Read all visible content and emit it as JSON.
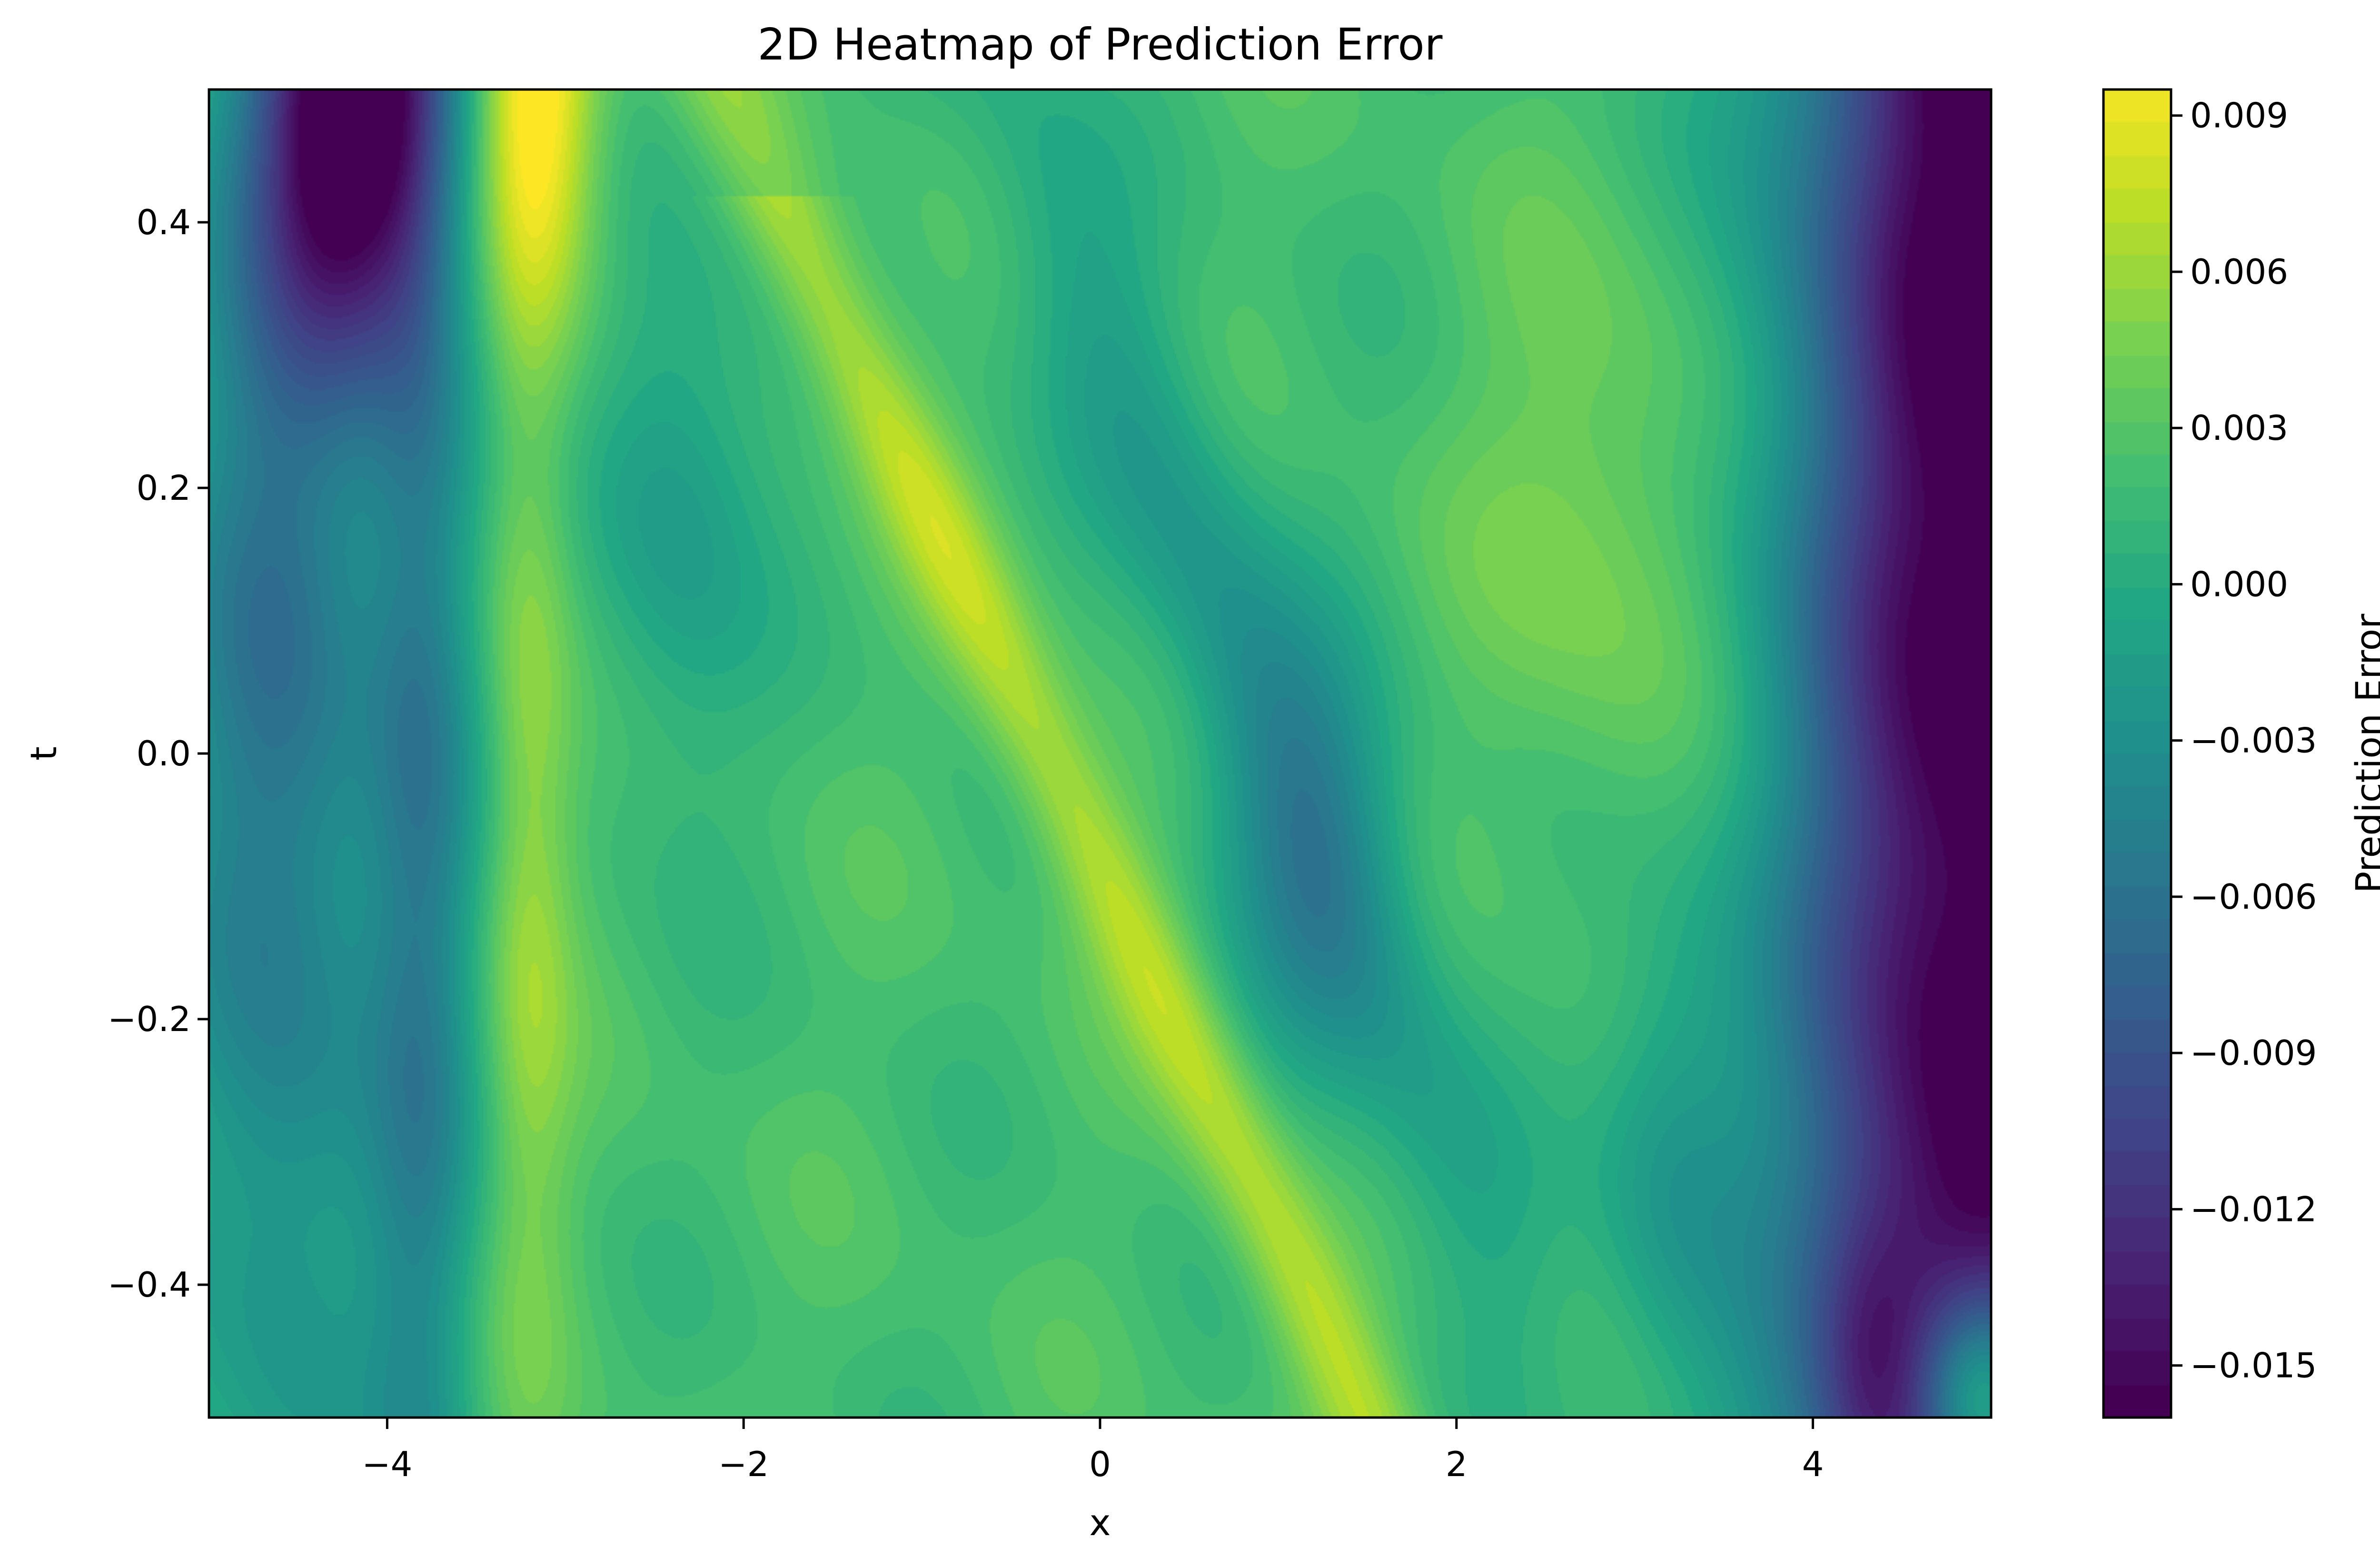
{
  "chart_data": {
    "type": "heatmap",
    "title": "2D Heatmap of Prediction Error",
    "xlabel": "x",
    "ylabel": "t",
    "xlim": [
      -5,
      5
    ],
    "ylim": [
      -0.5,
      0.5
    ],
    "colorbar": {
      "label": "Prediction Error",
      "range": [
        -0.016,
        0.0095
      ],
      "colormap": "viridis",
      "ticks": [
        {
          "value": 0.009,
          "label": "0.009"
        },
        {
          "value": 0.006,
          "label": "0.006"
        },
        {
          "value": 0.003,
          "label": "0.003"
        },
        {
          "value": 0.0,
          "label": "0.000"
        },
        {
          "value": -0.003,
          "label": "−0.003"
        },
        {
          "value": -0.006,
          "label": "−0.006"
        },
        {
          "value": -0.009,
          "label": "−0.009"
        },
        {
          "value": -0.012,
          "label": "−0.012"
        },
        {
          "value": -0.015,
          "label": "−0.015"
        }
      ]
    },
    "x_ticks": [
      {
        "value": -4,
        "label": "−4"
      },
      {
        "value": -2,
        "label": "−2"
      },
      {
        "value": 0,
        "label": "0"
      },
      {
        "value": 2,
        "label": "2"
      },
      {
        "value": 4,
        "label": "4"
      }
    ],
    "y_ticks": [
      {
        "value": 0.4,
        "label": "0.4"
      },
      {
        "value": 0.2,
        "label": "0.2"
      },
      {
        "value": 0.0,
        "label": "0.0"
      },
      {
        "value": -0.2,
        "label": "−0.2"
      },
      {
        "value": -0.4,
        "label": "−0.4"
      }
    ],
    "features": [
      {
        "name": "dark trough near top-left",
        "x": -4.2,
        "t": 0.45,
        "value": -0.016
      },
      {
        "name": "bright peak near top",
        "x": -3.2,
        "t": 0.48,
        "value": 0.0095
      },
      {
        "name": "diagonal ridge",
        "from": {
          "x": -1.8,
          "t": 0.4
        },
        "to": {
          "x": 1.2,
          "t": -0.35
        },
        "value": 0.0055
      },
      {
        "name": "right-edge trough",
        "x": 5.0,
        "t": 0.0,
        "value": -0.014
      },
      {
        "name": "bright spot bottom-right",
        "x": 4.9,
        "t": -0.48,
        "value": 0.006
      }
    ]
  }
}
